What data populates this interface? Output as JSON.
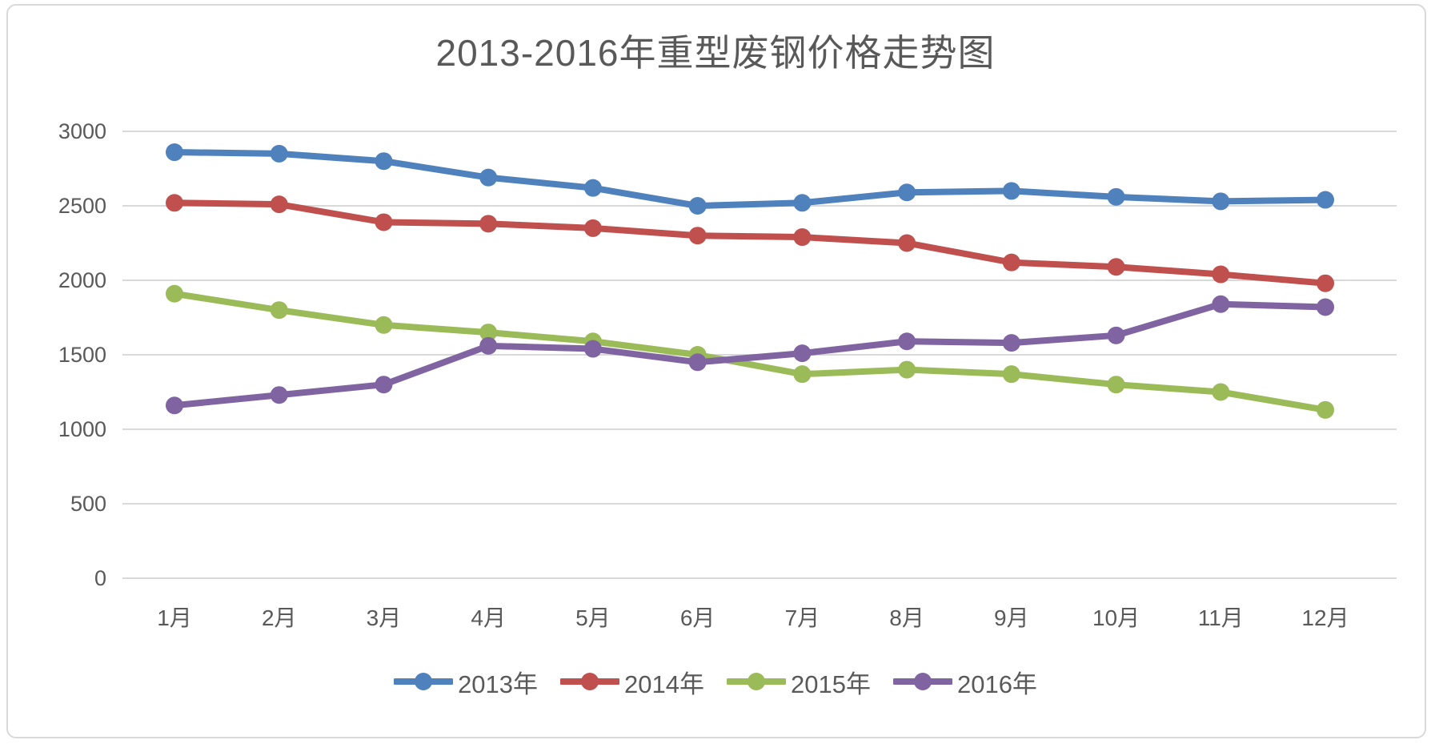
{
  "title": "2013-2016年重型废钢价格走势图",
  "chart_data": {
    "type": "line",
    "title": "2013-2016年重型废钢价格走势图",
    "categories": [
      "1月",
      "2月",
      "3月",
      "4月",
      "5月",
      "6月",
      "7月",
      "8月",
      "9月",
      "10月",
      "11月",
      "12月"
    ],
    "series": [
      {
        "name": "2013年",
        "color": "#4F81BD",
        "values": [
          2860,
          2850,
          2800,
          2690,
          2620,
          2500,
          2520,
          2590,
          2600,
          2560,
          2530,
          2540
        ]
      },
      {
        "name": "2014年",
        "color": "#C0504D",
        "values": [
          2520,
          2510,
          2390,
          2380,
          2350,
          2300,
          2290,
          2250,
          2120,
          2090,
          2040,
          1980
        ]
      },
      {
        "name": "2015年",
        "color": "#9BBB59",
        "values": [
          1910,
          1800,
          1700,
          1650,
          1590,
          1500,
          1370,
          1400,
          1370,
          1300,
          1250,
          1130
        ]
      },
      {
        "name": "2016年",
        "color": "#8064A2",
        "values": [
          1160,
          1230,
          1300,
          1560,
          1540,
          1450,
          1510,
          1590,
          1580,
          1630,
          1840,
          1820
        ]
      }
    ],
    "xlabel": "",
    "ylabel": "",
    "ylim": [
      0,
      3000
    ],
    "yticks": [
      0,
      500,
      1000,
      1500,
      2000,
      2500,
      3000
    ],
    "grid": true,
    "legend_position": "bottom"
  },
  "colors": {
    "grid": "#d9d9d9",
    "panel_border": "#d9d9d9",
    "text": "#595959",
    "background": "#ffffff"
  }
}
